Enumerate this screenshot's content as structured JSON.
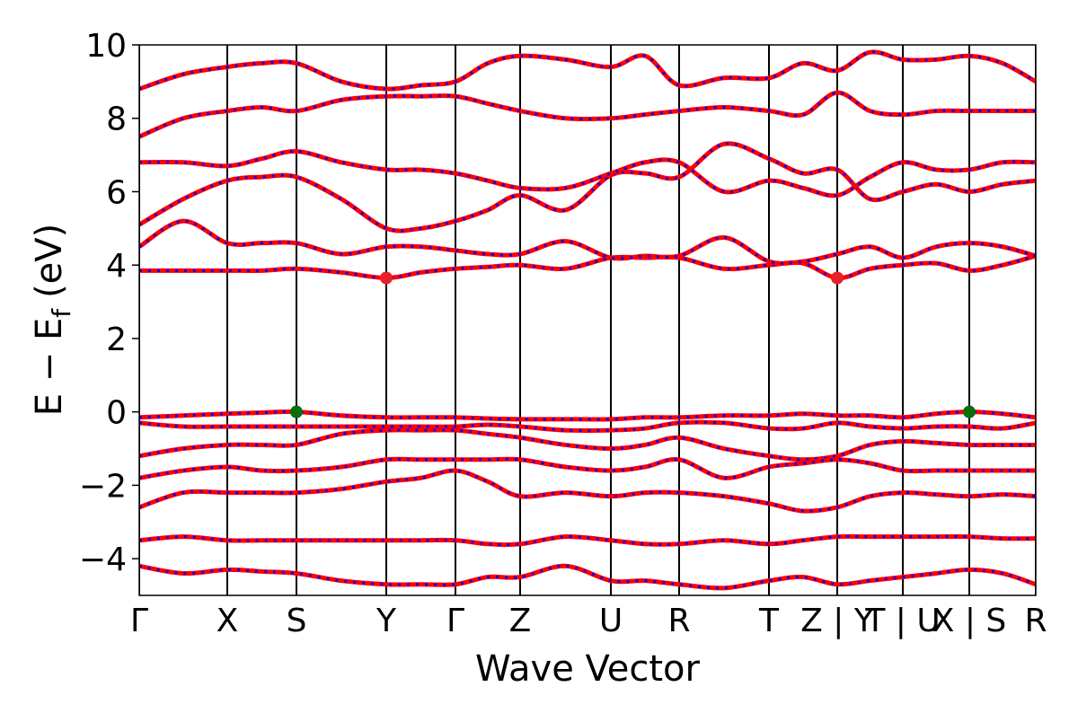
{
  "chart_data": {
    "type": "line",
    "xlabel": "Wave Vector",
    "ylabel": [
      "E − E",
      "f",
      "(eV)"
    ],
    "xlim": [
      0,
      9.98
    ],
    "ylim": [
      -5,
      10
    ],
    "xticks": [
      {
        "value": 0,
        "label": "Γ"
      },
      {
        "value": 0.98,
        "label": "X"
      },
      {
        "value": 1.75,
        "label": "S"
      },
      {
        "value": 2.75,
        "label": "Y"
      },
      {
        "value": 3.52,
        "label": "Γ"
      },
      {
        "value": 4.24,
        "label": "Z"
      },
      {
        "value": 5.25,
        "label": "U"
      },
      {
        "value": 6.01,
        "label": "R"
      },
      {
        "value": 7.01,
        "label": "T"
      },
      {
        "value": 7.77,
        "label": "Z | Y"
      },
      {
        "value": 8.5,
        "label": "T | U"
      },
      {
        "value": 9.24,
        "label": "X | S"
      },
      {
        "value": 9.98,
        "label": "R"
      }
    ],
    "yticks": [
      {
        "value": -4,
        "label": "−4"
      },
      {
        "value": -2,
        "label": "−2"
      },
      0,
      2,
      4,
      6,
      8,
      10
    ],
    "line_color": "#ff0000",
    "dash_color": "#0000ff",
    "x": [
      0,
      0.49,
      0.98,
      1.365,
      1.75,
      2.25,
      2.75,
      3.135,
      3.52,
      3.88,
      4.24,
      4.745,
      5.25,
      5.63,
      6.01,
      6.51,
      7.01,
      7.39,
      7.77,
      8.135,
      8.5,
      8.87,
      9.24,
      9.61,
      9.98
    ],
    "series": [
      {
        "values": [
          3.85,
          3.85,
          3.85,
          3.85,
          3.9,
          3.8,
          3.65,
          3.8,
          3.9,
          3.95,
          4.0,
          3.9,
          4.2,
          4.2,
          4.2,
          3.9,
          4.0,
          4.05,
          3.65,
          3.9,
          4.0,
          4.05,
          3.85,
          4.0,
          4.25
        ]
      },
      {
        "values": [
          4.5,
          5.2,
          4.6,
          4.6,
          4.6,
          4.3,
          4.5,
          4.5,
          4.4,
          4.3,
          4.3,
          4.65,
          4.2,
          4.25,
          4.25,
          4.75,
          4.1,
          4.1,
          4.3,
          4.5,
          4.2,
          4.5,
          4.6,
          4.5,
          4.25
        ]
      },
      {
        "values": [
          5.1,
          5.8,
          6.3,
          6.4,
          6.4,
          5.8,
          5.0,
          5.0,
          5.2,
          5.5,
          5.9,
          5.5,
          6.45,
          6.5,
          6.4,
          7.3,
          6.9,
          6.5,
          6.6,
          5.8,
          6.0,
          6.2,
          6.0,
          6.2,
          6.3
        ]
      },
      {
        "values": [
          6.8,
          6.8,
          6.7,
          6.9,
          7.1,
          6.8,
          6.6,
          6.6,
          6.5,
          6.3,
          6.1,
          6.1,
          6.5,
          6.8,
          6.8,
          6.0,
          6.3,
          6.1,
          5.9,
          6.4,
          6.8,
          6.6,
          6.6,
          6.8,
          6.8
        ]
      },
      {
        "values": [
          7.5,
          8.0,
          8.2,
          8.3,
          8.2,
          8.5,
          8.6,
          8.6,
          8.6,
          8.4,
          8.2,
          8.0,
          8.0,
          8.1,
          8.2,
          8.3,
          8.2,
          8.1,
          8.7,
          8.2,
          8.1,
          8.2,
          8.2,
          8.2,
          8.2
        ]
      },
      {
        "values": [
          8.8,
          9.2,
          9.4,
          9.5,
          9.5,
          9.0,
          8.8,
          8.9,
          9.0,
          9.5,
          9.7,
          9.6,
          9.4,
          9.7,
          8.9,
          9.1,
          9.1,
          9.5,
          9.3,
          9.8,
          9.6,
          9.6,
          9.7,
          9.5,
          9.0
        ]
      },
      {
        "values": [
          -0.15,
          -0.1,
          -0.05,
          -0.02,
          0,
          -0.1,
          -0.15,
          -0.15,
          -0.15,
          -0.18,
          -0.2,
          -0.2,
          -0.2,
          -0.15,
          -0.15,
          -0.1,
          -0.1,
          -0.05,
          -0.1,
          -0.1,
          -0.15,
          -0.05,
          0,
          -0.05,
          -0.15
        ]
      },
      {
        "values": [
          -0.3,
          -0.4,
          -0.4,
          -0.4,
          -0.4,
          -0.4,
          -0.4,
          -0.4,
          -0.4,
          -0.35,
          -0.4,
          -0.5,
          -0.5,
          -0.45,
          -0.3,
          -0.3,
          -0.45,
          -0.45,
          -0.3,
          -0.4,
          -0.45,
          -0.4,
          -0.4,
          -0.45,
          -0.3
        ]
      },
      {
        "values": [
          -1.2,
          -1.0,
          -0.9,
          -0.9,
          -0.9,
          -0.6,
          -0.5,
          -0.5,
          -0.5,
          -0.6,
          -0.7,
          -0.9,
          -1.0,
          -0.9,
          -0.7,
          -1.0,
          -1.2,
          -1.3,
          -1.2,
          -0.9,
          -0.8,
          -0.85,
          -0.9,
          -0.9,
          -0.9
        ]
      },
      {
        "values": [
          -1.8,
          -1.6,
          -1.5,
          -1.6,
          -1.6,
          -1.5,
          -1.3,
          -1.3,
          -1.3,
          -1.3,
          -1.3,
          -1.5,
          -1.6,
          -1.5,
          -1.3,
          -1.8,
          -1.5,
          -1.4,
          -1.3,
          -1.4,
          -1.6,
          -1.6,
          -1.6,
          -1.6,
          -1.6
        ]
      },
      {
        "values": [
          -2.6,
          -2.2,
          -2.2,
          -2.2,
          -2.2,
          -2.1,
          -1.9,
          -1.8,
          -1.6,
          -1.9,
          -2.3,
          -2.2,
          -2.3,
          -2.2,
          -2.2,
          -2.3,
          -2.5,
          -2.7,
          -2.6,
          -2.3,
          -2.2,
          -2.25,
          -2.3,
          -2.25,
          -2.3
        ]
      },
      {
        "values": [
          -3.5,
          -3.4,
          -3.5,
          -3.5,
          -3.5,
          -3.5,
          -3.5,
          -3.5,
          -3.5,
          -3.6,
          -3.6,
          -3.4,
          -3.5,
          -3.6,
          -3.6,
          -3.5,
          -3.6,
          -3.5,
          -3.4,
          -3.4,
          -3.4,
          -3.4,
          -3.4,
          -3.45,
          -3.45
        ]
      },
      {
        "values": [
          -4.2,
          -4.4,
          -4.3,
          -4.35,
          -4.4,
          -4.6,
          -4.7,
          -4.7,
          -4.7,
          -4.5,
          -4.5,
          -4.2,
          -4.6,
          -4.6,
          -4.7,
          -4.8,
          -4.6,
          -4.5,
          -4.7,
          -4.6,
          -4.5,
          -4.4,
          -4.3,
          -4.4,
          -4.7
        ]
      }
    ],
    "points": [
      {
        "color": "#e8202a",
        "x": [
          2.75,
          7.77
        ],
        "y": [
          3.65,
          3.65
        ]
      },
      {
        "color": "#0a6e0a",
        "x": [
          1.75,
          9.24
        ],
        "y": [
          0,
          0
        ]
      }
    ]
  }
}
